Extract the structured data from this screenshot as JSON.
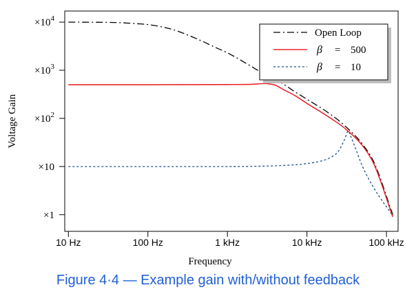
{
  "chart_data": {
    "type": "line",
    "xlabel": "Frequency",
    "ylabel": "Voltage Gain",
    "x_scale": "log",
    "y_scale": "log",
    "xlim": [
      9,
      140000
    ],
    "ylim": [
      0.45,
      17000
    ],
    "x_ticks": [
      {
        "value": 10,
        "label": "10 Hz"
      },
      {
        "value": 100,
        "label": "100 Hz"
      },
      {
        "value": 1000,
        "label": "1 kHz"
      },
      {
        "value": 10000,
        "label": "10 kHz"
      },
      {
        "value": 100000,
        "label": "100 kHz"
      }
    ],
    "y_ticks": [
      {
        "value": 1,
        "base": "×1",
        "exp": ""
      },
      {
        "value": 10,
        "base": "×10",
        "exp": ""
      },
      {
        "value": 100,
        "base": "×10",
        "exp": "2"
      },
      {
        "value": 1000,
        "base": "×10",
        "exp": "3"
      },
      {
        "value": 10000,
        "base": "×10",
        "exp": "4"
      }
    ],
    "grid": false,
    "legend_position": "top-right",
    "series": [
      {
        "name": "Open Loop",
        "legend_text": "Open Loop",
        "color": "#000000",
        "dash": "10,4,2,4",
        "x": [
          10,
          20,
          40,
          70,
          100,
          200,
          300,
          500,
          700,
          1000,
          2000,
          3000,
          5000,
          7000,
          10000,
          20000,
          30000,
          50000,
          70000,
          120000
        ],
        "y": [
          10000,
          9950,
          9800,
          9300,
          8900,
          7100,
          5600,
          3900,
          3000,
          2300,
          1200,
          800,
          520,
          360,
          250,
          120,
          70,
          29,
          12,
          1
        ]
      },
      {
        "name": "β = 500",
        "legend_symbol": "β",
        "legend_eq": "=",
        "legend_value": "500",
        "color": "#e8262d",
        "dash": "",
        "x": [
          10,
          100,
          1000,
          2000,
          3000,
          3500,
          4000,
          5000,
          7000,
          10000,
          20000,
          30000,
          50000,
          70000,
          120000
        ],
        "y": [
          500,
          500,
          505,
          510,
          530,
          515,
          490,
          400,
          300,
          205,
          100,
          62,
          27,
          11,
          0.9
        ]
      },
      {
        "name": "β = 10",
        "legend_symbol": "β",
        "legend_eq": "=",
        "legend_value": "10",
        "color": "#1d4f8f",
        "dash": "3,3",
        "x": [
          10,
          100,
          1000,
          3000,
          5000,
          10000,
          15000,
          20000,
          25000,
          30000,
          33000,
          35000,
          40000,
          50000,
          70000,
          120000
        ],
        "y": [
          10,
          10,
          10,
          10.2,
          10.5,
          11.5,
          13,
          15.5,
          21,
          38,
          55,
          45,
          26,
          10,
          3.5,
          0.95
        ]
      }
    ]
  },
  "caption": "Figure 4·4 — Example gain with/without feedback"
}
